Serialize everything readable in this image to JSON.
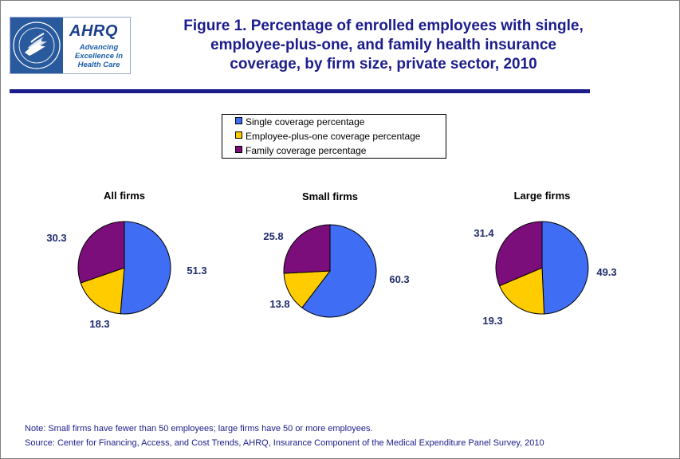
{
  "logo": {
    "org_name": "AHRQ",
    "tagline_lines": [
      "Advancing",
      "Excellence in",
      "Health Care"
    ],
    "seal_text": "DEPARTMENT OF HEALTH & HUMAN SERVICES USA"
  },
  "title": {
    "lines": [
      "Figure 1. Percentage of enrolled employees with single,",
      "employee-plus-one, and family health insurance",
      "coverage, by firm size, private sector, 2010"
    ]
  },
  "colors": {
    "title": "#1c1c8c",
    "single": "#3f6df3",
    "employee_plus_one": "#ffcc00",
    "family": "#7b0e7b"
  },
  "chart_data": {
    "type": "pie",
    "legend": [
      {
        "label": "Single coverage percentage",
        "color": "#3f6df3"
      },
      {
        "label": "Employee-plus-one coverage percentage",
        "color": "#ffcc00"
      },
      {
        "label": "Family coverage percentage",
        "color": "#7b0e7b"
      }
    ],
    "legend_position": "top-center",
    "charts": [
      {
        "title": "All firms",
        "slices": [
          {
            "label": "Single coverage percentage",
            "value": 51.3
          },
          {
            "label": "Employee-plus-one coverage percentage",
            "value": 18.3
          },
          {
            "label": "Family coverage percentage",
            "value": 30.3
          }
        ]
      },
      {
        "title": "Small firms",
        "slices": [
          {
            "label": "Single coverage percentage",
            "value": 60.3
          },
          {
            "label": "Employee-plus-one coverage percentage",
            "value": 13.8
          },
          {
            "label": "Family coverage percentage",
            "value": 25.8
          }
        ]
      },
      {
        "title": "Large firms",
        "slices": [
          {
            "label": "Single coverage percentage",
            "value": 49.3
          },
          {
            "label": "Employee-plus-one coverage percentage",
            "value": 19.3
          },
          {
            "label": "Family coverage percentage",
            "value": 31.4
          }
        ]
      }
    ]
  },
  "notes": {
    "note": "Note: Small firms have fewer than 50 employees; large firms have 50 or more employees.",
    "source": "Source: Center for Financing, Access, and Cost Trends, AHRQ, Insurance Component of the Medical Expenditure Panel Survey, 2010"
  }
}
